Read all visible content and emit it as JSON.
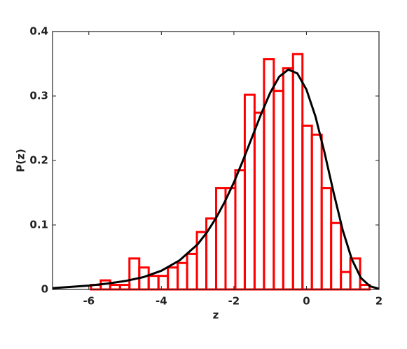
{
  "chart_data": {
    "type": "histogram",
    "xlabel": "z",
    "ylabel": "P(z)",
    "xlim": [
      -7,
      2
    ],
    "ylim": [
      0,
      0.4
    ],
    "xticks": [
      -6,
      -4,
      -2,
      0,
      2
    ],
    "yticks": [
      0,
      0.1,
      0.2,
      0.3,
      0.4
    ],
    "color": "#ff0000",
    "bins": [
      -5.94,
      -5.67,
      -5.41,
      -5.14,
      -4.88,
      -4.61,
      -4.35,
      -4.08,
      -3.82,
      -3.55,
      -3.29,
      -3.02,
      -2.76,
      -2.49,
      -2.23,
      -1.96,
      -1.7,
      -1.43,
      -1.17,
      -0.9,
      -0.64,
      -0.37,
      -0.11,
      0.15,
      0.42,
      0.68,
      0.95,
      1.21,
      1.48,
      1.74
    ],
    "values": [
      0.007,
      0.014,
      0.007,
      0.007,
      0.048,
      0.034,
      0.021,
      0.021,
      0.034,
      0.041,
      0.055,
      0.089,
      0.11,
      0.157,
      0.157,
      0.185,
      0.302,
      0.274,
      0.357,
      0.308,
      0.343,
      0.365,
      0.254,
      0.24,
      0.157,
      0.103,
      0.027,
      0.048,
      0.007
    ],
    "curve": {
      "color": "#000000",
      "x": [
        -7,
        -6.5,
        -6,
        -5.5,
        -5,
        -4.5,
        -4,
        -3.5,
        -3,
        -2.75,
        -2.5,
        -2.25,
        -2,
        -1.75,
        -1.5,
        -1.25,
        -1,
        -0.75,
        -0.5,
        -0.25,
        0,
        0.25,
        0.5,
        0.75,
        1,
        1.25,
        1.5,
        1.75,
        2
      ],
      "values": [
        0.002,
        0.004,
        0.006,
        0.009,
        0.013,
        0.019,
        0.029,
        0.045,
        0.07,
        0.088,
        0.11,
        0.136,
        0.166,
        0.2,
        0.236,
        0.272,
        0.305,
        0.33,
        0.341,
        0.335,
        0.31,
        0.268,
        0.212,
        0.15,
        0.092,
        0.047,
        0.018,
        0.005,
        0.001
      ]
    }
  }
}
